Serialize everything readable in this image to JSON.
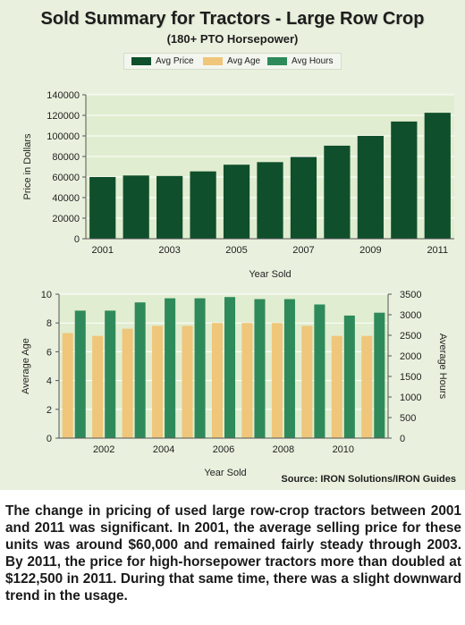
{
  "title": "Sold Summary for Tractors - Large Row Crop",
  "subtitle": "(180+ PTO Horsepower)",
  "legend": [
    {
      "label": "Avg Price",
      "color": "#0f4f2c"
    },
    {
      "label": "Avg Age",
      "color": "#efc67a"
    },
    {
      "label": "Avg Hours",
      "color": "#2e8a5a"
    }
  ],
  "source": "Source: IRON Solutions/IRON Guides",
  "caption": "The change in pricing of used large row-crop tractors between 2001 and 2011 was significant. In 2001, the average selling price for these units was around $60,000 and remained fairly steady through 2003. By 2011, the price for high-horsepower tractors more than doubled at $122,500 in 2011. During that same time, there was a slight downward trend in the usage.",
  "chart_data": [
    {
      "type": "bar",
      "categories": [
        "2001",
        "2002",
        "2003",
        "2004",
        "2005",
        "2006",
        "2007",
        "2008",
        "2009",
        "2010",
        "2011"
      ],
      "x_tick_labels": [
        "2001",
        "2003",
        "2005",
        "2007",
        "2009",
        "2011"
      ],
      "series": [
        {
          "name": "Avg Price",
          "values": [
            60000,
            61500,
            61000,
            65500,
            72000,
            74500,
            79500,
            90500,
            100000,
            114000,
            122500
          ]
        }
      ],
      "xlabel": "Year Sold",
      "ylabel": "Price in Dollars",
      "ylim": [
        0,
        140000
      ],
      "yticks": [
        0,
        20000,
        40000,
        60000,
        80000,
        100000,
        120000,
        140000
      ],
      "colors": {
        "bar": "#0f4f2c",
        "plot_bg": "#e1edd0",
        "grid": "#ffffff"
      }
    },
    {
      "type": "bar",
      "categories": [
        "2001",
        "2002",
        "2003",
        "2004",
        "2005",
        "2006",
        "2007",
        "2008",
        "2009",
        "2010",
        "2011"
      ],
      "x_tick_labels": [
        "2002",
        "2004",
        "2006",
        "2008",
        "2010"
      ],
      "series": [
        {
          "name": "Avg Age",
          "axis": "left",
          "values": [
            7.3,
            7.1,
            7.6,
            7.8,
            7.8,
            8.0,
            8.0,
            8.0,
            7.8,
            7.1,
            7.1
          ]
        },
        {
          "name": "Avg Hours",
          "axis": "right",
          "values": [
            3100,
            3100,
            3300,
            3400,
            3400,
            3430,
            3380,
            3380,
            3250,
            2980,
            3050
          ]
        }
      ],
      "xlabel": "Year Sold",
      "ylabel": "Average Age",
      "y2label": "Average Hours",
      "ylim": [
        0,
        10
      ],
      "yticks": [
        0,
        2,
        4,
        6,
        8,
        10
      ],
      "y2lim": [
        0,
        3500
      ],
      "y2ticks": [
        0,
        500,
        1000,
        1500,
        2000,
        2500,
        3000,
        3500
      ],
      "colors": {
        "age": "#efc67a",
        "hours": "#2e8a5a",
        "plot_bg": "#e1edd0",
        "grid": "#ffffff"
      }
    }
  ]
}
